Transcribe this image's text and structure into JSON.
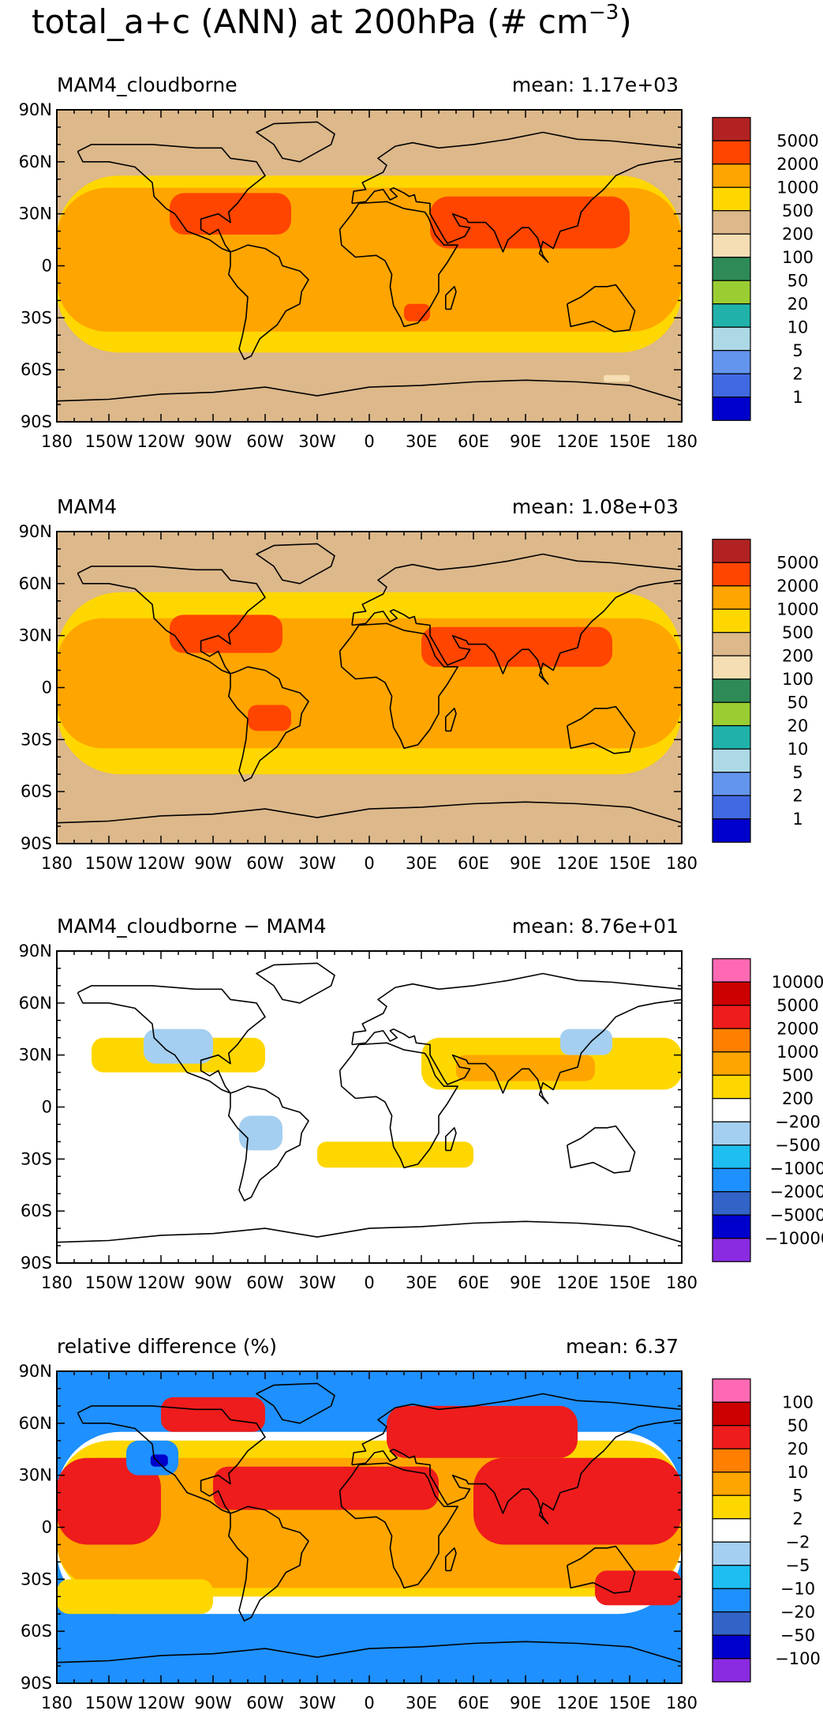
{
  "title": {
    "main": "total_a+c (ANN) at 200hPa (# cm",
    "exponent": "−3",
    "close": ")"
  },
  "lat_ticks": [
    "90N",
    "60N",
    "30N",
    "0",
    "30S",
    "60S",
    "90S"
  ],
  "lon_ticks": [
    "180",
    "150W",
    "120W",
    "90W",
    "60W",
    "30W",
    "0",
    "30E",
    "60E",
    "90E",
    "120E",
    "150E",
    "180"
  ],
  "panels": [
    {
      "name": "MAM4_cloudborne",
      "mean_label": "mean:",
      "mean_value": "1.17e+03",
      "background": "#dcb88a",
      "legend": {
        "colors": [
          "#b22222",
          "#ff4500",
          "#ffa500",
          "#ffd700",
          "#dcb88a",
          "#f5deb3",
          "#2e8b57",
          "#9acd32",
          "#20b2aa",
          "#add8e6",
          "#6495ed",
          "#4169e1",
          "#0000cd"
        ],
        "labels": [
          "5000",
          "2000",
          "1000",
          "500",
          "200",
          "100",
          "50",
          "20",
          "10",
          "5",
          "2",
          "1"
        ]
      },
      "regions": [
        {
          "color": "#ffd700",
          "lon": [
            -180,
            180
          ],
          "lat": [
            -50,
            52
          ]
        },
        {
          "color": "#ffa500",
          "lon": [
            -180,
            180
          ],
          "lat": [
            -38,
            45
          ]
        },
        {
          "color": "#ff4500",
          "lon": [
            -115,
            -45
          ],
          "lat": [
            18,
            42
          ]
        },
        {
          "color": "#ff4500",
          "lon": [
            35,
            150
          ],
          "lat": [
            10,
            40
          ]
        },
        {
          "color": "#ff4500",
          "lon": [
            20,
            35
          ],
          "lat": [
            -32,
            -22
          ]
        },
        {
          "color": "#f5deb3",
          "lon": [
            135,
            150
          ],
          "lat": [
            -67,
            -63
          ]
        }
      ]
    },
    {
      "name": "MAM4",
      "mean_label": "mean:",
      "mean_value": "1.08e+03",
      "background": "#dcb88a",
      "legend": {
        "colors": [
          "#b22222",
          "#ff4500",
          "#ffa500",
          "#ffd700",
          "#dcb88a",
          "#f5deb3",
          "#2e8b57",
          "#9acd32",
          "#20b2aa",
          "#add8e6",
          "#6495ed",
          "#4169e1",
          "#0000cd"
        ],
        "labels": [
          "5000",
          "2000",
          "1000",
          "500",
          "200",
          "100",
          "50",
          "20",
          "10",
          "5",
          "2",
          "1"
        ]
      },
      "regions": [
        {
          "color": "#ffd700",
          "lon": [
            -180,
            180
          ],
          "lat": [
            -50,
            55
          ]
        },
        {
          "color": "#ffa500",
          "lon": [
            -180,
            180
          ],
          "lat": [
            -35,
            40
          ]
        },
        {
          "color": "#ff4500",
          "lon": [
            -115,
            -50
          ],
          "lat": [
            20,
            42
          ]
        },
        {
          "color": "#ff4500",
          "lon": [
            30,
            140
          ],
          "lat": [
            12,
            35
          ]
        },
        {
          "color": "#ff4500",
          "lon": [
            -70,
            -45
          ],
          "lat": [
            -25,
            -10
          ]
        }
      ]
    },
    {
      "name": "MAM4_cloudborne − MAM4",
      "mean_label": "mean:",
      "mean_value": "8.76e+01",
      "background": "#ffffff",
      "legend": {
        "colors": [
          "#ff69b4",
          "#cc0000",
          "#ee1c1c",
          "#ff7f00",
          "#ffa500",
          "#ffd700",
          "#ffffff",
          "#a4cff0",
          "#1ebef0",
          "#1e90ff",
          "#3264c8",
          "#0000cd",
          "#8a2be2"
        ],
        "labels": [
          "10000",
          "5000",
          "2000",
          "1000",
          "500",
          "200",
          "−200",
          "−500",
          "−1000",
          "−2000",
          "−5000",
          "−10000"
        ]
      },
      "regions": [
        {
          "color": "#ffd700",
          "lon": [
            -160,
            -60
          ],
          "lat": [
            20,
            40
          ]
        },
        {
          "color": "#a4cff0",
          "lon": [
            -130,
            -90
          ],
          "lat": [
            25,
            45
          ]
        },
        {
          "color": "#ffd700",
          "lon": [
            30,
            180
          ],
          "lat": [
            10,
            40
          ]
        },
        {
          "color": "#ffa500",
          "lon": [
            50,
            130
          ],
          "lat": [
            15,
            30
          ]
        },
        {
          "color": "#a4cff0",
          "lon": [
            110,
            140
          ],
          "lat": [
            30,
            45
          ]
        },
        {
          "color": "#a4cff0",
          "lon": [
            -75,
            -50
          ],
          "lat": [
            -25,
            -5
          ]
        },
        {
          "color": "#ffd700",
          "lon": [
            -30,
            60
          ],
          "lat": [
            -35,
            -20
          ]
        }
      ]
    },
    {
      "name": "relative difference (%)",
      "mean_label": "mean:",
      "mean_value": "6.37",
      "background": "#1e90ff",
      "legend": {
        "colors": [
          "#ff69b4",
          "#cc0000",
          "#ee1c1c",
          "#ff7f00",
          "#ffa500",
          "#ffd700",
          "#ffffff",
          "#a4cff0",
          "#1ebef0",
          "#1e90ff",
          "#3264c8",
          "#0000cd",
          "#8a2be2"
        ],
        "labels": [
          "100",
          "50",
          "20",
          "10",
          "5",
          "2",
          "−2",
          "−5",
          "−10",
          "−20",
          "−50",
          "−100"
        ]
      },
      "regions": [
        {
          "color": "#ffffff",
          "lon": [
            -180,
            180
          ],
          "lat": [
            -50,
            55
          ]
        },
        {
          "color": "#ffd700",
          "lon": [
            -180,
            180
          ],
          "lat": [
            -40,
            50
          ]
        },
        {
          "color": "#ffa500",
          "lon": [
            -180,
            180
          ],
          "lat": [
            -35,
            40
          ]
        },
        {
          "color": "#ee1c1c",
          "lon": [
            -180,
            -120
          ],
          "lat": [
            -10,
            40
          ]
        },
        {
          "color": "#ee1c1c",
          "lon": [
            -90,
            40
          ],
          "lat": [
            10,
            35
          ]
        },
        {
          "color": "#ee1c1c",
          "lon": [
            10,
            120
          ],
          "lat": [
            40,
            70
          ]
        },
        {
          "color": "#ee1c1c",
          "lon": [
            60,
            180
          ],
          "lat": [
            -10,
            40
          ]
        },
        {
          "color": "#ee1c1c",
          "lon": [
            -120,
            -60
          ],
          "lat": [
            55,
            75
          ]
        },
        {
          "color": "#1e90ff",
          "lon": [
            -140,
            -110
          ],
          "lat": [
            30,
            50
          ]
        },
        {
          "color": "#0000cd",
          "lon": [
            -126,
            -116
          ],
          "lat": [
            35,
            42
          ]
        },
        {
          "color": "#ffd700",
          "lon": [
            -180,
            -90
          ],
          "lat": [
            -50,
            -30
          ]
        },
        {
          "color": "#ee1c1c",
          "lon": [
            130,
            180
          ],
          "lat": [
            -45,
            -25
          ]
        }
      ]
    }
  ]
}
